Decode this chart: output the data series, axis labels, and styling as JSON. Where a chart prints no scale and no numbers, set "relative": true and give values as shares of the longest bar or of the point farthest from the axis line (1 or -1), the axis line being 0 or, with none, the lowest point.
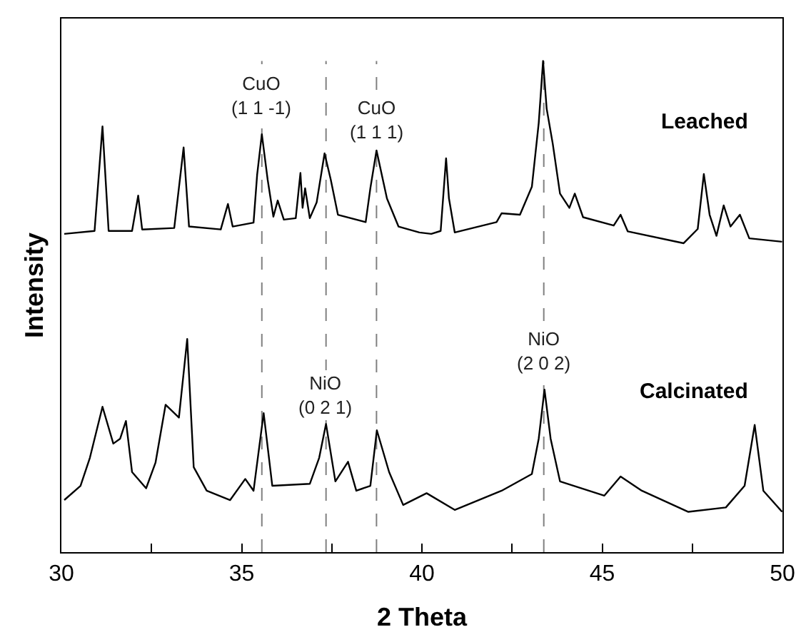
{
  "chart_data": {
    "type": "line",
    "relative": true,
    "xlabel": "2 Theta",
    "ylabel": "Intensity",
    "legend": false,
    "grid": false,
    "marker": "none",
    "line_style": "solid",
    "xlim": [
      30,
      50
    ],
    "xticks": [
      30,
      {
        "value": 32.5,
        "label": null
      },
      35,
      {
        "value": 37.5,
        "label": null
      },
      40,
      {
        "value": 42.5,
        "label": null
      },
      45,
      {
        "value": 47.5,
        "label": null
      },
      50
    ],
    "series": [
      {
        "name": "Leached",
        "color": "#000000",
        "x": [
          30.08,
          30.92,
          31.14,
          31.31,
          31.96,
          32.13,
          32.24,
          33.13,
          33.39,
          33.54,
          34.42,
          34.62,
          34.75,
          35.33,
          35.43,
          35.56,
          35.72,
          35.88,
          36.0,
          36.17,
          36.5,
          36.63,
          36.69,
          36.76,
          36.89,
          37.08,
          37.3,
          37.47,
          37.67,
          38.44,
          38.57,
          38.74,
          39.03,
          39.35,
          39.93,
          40.26,
          40.52,
          40.67,
          40.75,
          40.91,
          42.07,
          42.21,
          42.72,
          43.05,
          43.24,
          43.36,
          43.46,
          43.63,
          43.83,
          44.09,
          44.24,
          44.47,
          45.32,
          45.51,
          45.71,
          47.26,
          47.65,
          47.82,
          47.98,
          48.17,
          48.37,
          48.56,
          48.82,
          49.08,
          49.99
        ],
        "values": [
          0.648,
          0.654,
          0.867,
          0.654,
          0.654,
          0.726,
          0.657,
          0.66,
          0.824,
          0.663,
          0.657,
          0.709,
          0.663,
          0.671,
          0.769,
          0.851,
          0.759,
          0.683,
          0.716,
          0.677,
          0.68,
          0.772,
          0.701,
          0.741,
          0.68,
          0.712,
          0.812,
          0.759,
          0.687,
          0.672,
          0.741,
          0.818,
          0.72,
          0.663,
          0.651,
          0.648,
          0.654,
          0.802,
          0.72,
          0.651,
          0.672,
          0.69,
          0.687,
          0.744,
          0.874,
          1.0,
          0.903,
          0.831,
          0.73,
          0.701,
          0.73,
          0.682,
          0.665,
          0.687,
          0.653,
          0.629,
          0.658,
          0.77,
          0.687,
          0.644,
          0.706,
          0.663,
          0.687,
          0.639,
          0.632
        ]
      },
      {
        "name": "Calcinated",
        "color": "#000000",
        "x": [
          30.08,
          30.53,
          30.79,
          31.14,
          31.44,
          31.63,
          31.79,
          31.96,
          32.35,
          32.61,
          32.89,
          33.26,
          33.49,
          33.67,
          34.03,
          34.68,
          35.1,
          35.33,
          35.61,
          35.85,
          36.89,
          37.15,
          37.34,
          37.6,
          37.95,
          38.18,
          38.57,
          38.75,
          39.09,
          39.48,
          40.13,
          40.91,
          42.21,
          43.05,
          43.24,
          43.4,
          43.57,
          43.83,
          45.06,
          45.51,
          46.1,
          47.39,
          48.43,
          48.95,
          49.23,
          49.47,
          49.99
        ],
        "values": [
          0.106,
          0.135,
          0.192,
          0.296,
          0.221,
          0.231,
          0.267,
          0.163,
          0.13,
          0.182,
          0.3,
          0.274,
          0.434,
          0.173,
          0.125,
          0.106,
          0.149,
          0.125,
          0.283,
          0.135,
          0.139,
          0.192,
          0.261,
          0.144,
          0.184,
          0.125,
          0.135,
          0.248,
          0.163,
          0.096,
          0.12,
          0.086,
          0.125,
          0.159,
          0.231,
          0.331,
          0.231,
          0.144,
          0.115,
          0.154,
          0.125,
          0.082,
          0.091,
          0.135,
          0.259,
          0.125,
          0.082
        ]
      }
    ],
    "ref_lines": [
      {
        "axis": "x",
        "value": 35.56,
        "color": "#808080",
        "line_style": "dashed"
      },
      {
        "axis": "x",
        "value": 37.34,
        "color": "#808080",
        "line_style": "dashed"
      },
      {
        "axis": "x",
        "value": 38.74,
        "color": "#808080",
        "line_style": "dashed"
      },
      {
        "axis": "x",
        "value": 43.38,
        "color": "#808080",
        "line_style": "dashed"
      }
    ],
    "annotations": [
      {
        "text": "CuO\n(1 1 -1)",
        "x": 35.56,
        "y": 0.93
      },
      {
        "text": "CuO\n(1 1 1)",
        "x": 38.74,
        "y": 0.88
      },
      {
        "text": "NiO\n(0 2 1)",
        "x": 37.34,
        "y": 0.32
      },
      {
        "text": "NiO\n(2 0 2)",
        "x": 43.38,
        "y": 0.41
      }
    ]
  }
}
